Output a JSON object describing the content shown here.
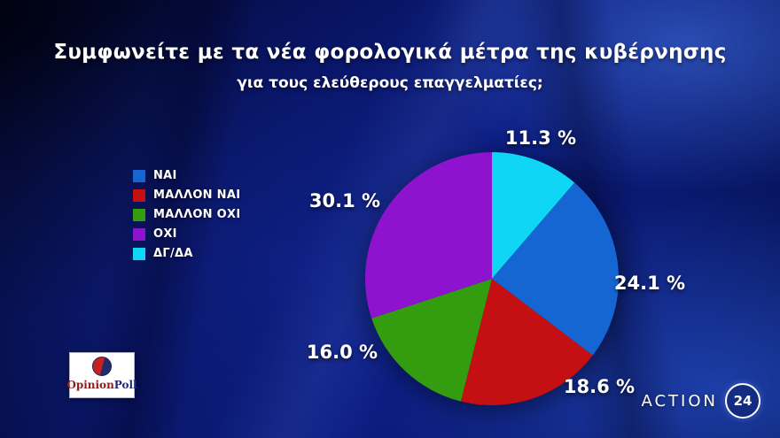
{
  "title": "Συμφωνείτε με τα νέα φορολογικά μέτρα της κυβέρνησης",
  "subtitle": "για τους ελεύθερους επαγγελματίες;",
  "chart_data": {
    "type": "pie",
    "title": "Συμφωνείτε με τα νέα φορολογικά μέτρα της κυβέρνησης για τους ελεύθερους επαγγελματίες;",
    "legend_position": "left",
    "start_angle_deg": -90,
    "direction": "clockwise",
    "slices": [
      {
        "label": "ΝΑΙ",
        "value": 24.1,
        "display": "24.1 %",
        "color": "#1565d2"
      },
      {
        "label": "ΜΑΛΛΟΝ ΝΑΙ",
        "value": 18.6,
        "display": "18.6 %",
        "color": "#c41012"
      },
      {
        "label": "ΜΑΛΛΟΝ ΟΧΙ",
        "value": 16.0,
        "display": "16.0 %",
        "color": "#339d0f"
      },
      {
        "label": "ΟΧΙ",
        "value": 30.1,
        "display": "30.1 %",
        "color": "#8d13cf"
      },
      {
        "label": "ΔΓ/ΔΑ",
        "value": 11.3,
        "display": "11.3 %",
        "color": "#10d6f6"
      }
    ],
    "draw_order": [
      4,
      0,
      1,
      2,
      3
    ]
  },
  "logos": {
    "opinionpoll": {
      "opinion": "Opinion",
      "poll": "Poll"
    },
    "action24": {
      "name": "ACTION",
      "number": "24"
    }
  }
}
